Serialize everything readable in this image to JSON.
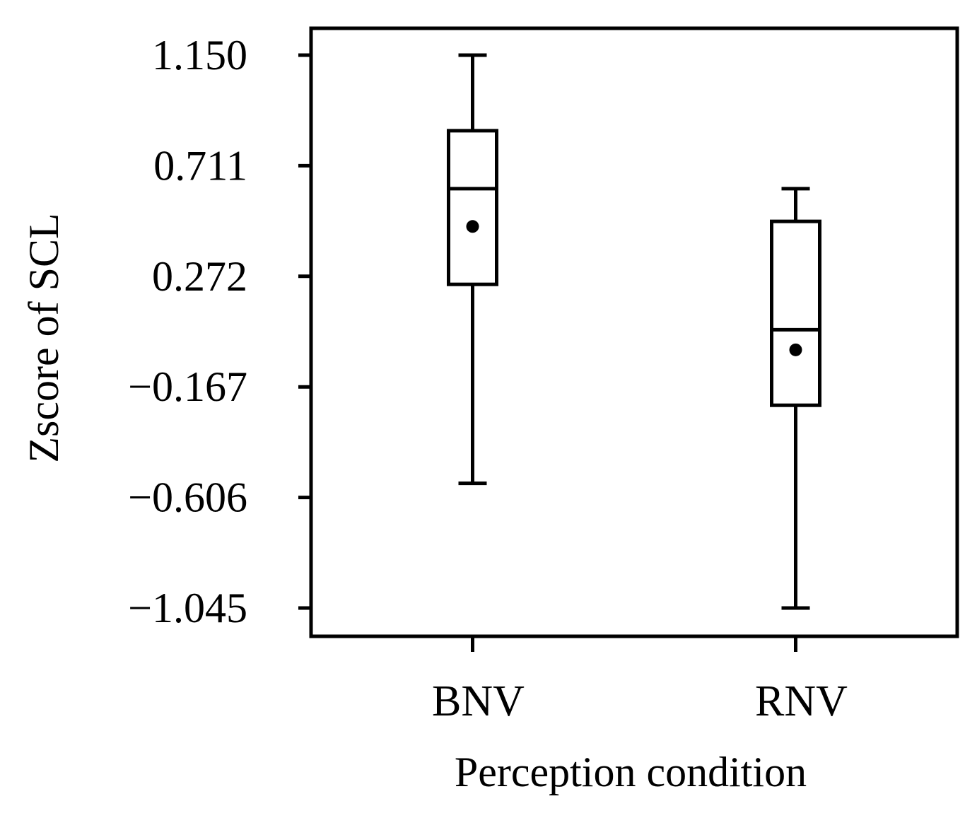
{
  "chart_data": {
    "type": "box",
    "xlabel": "Perception condition",
    "ylabel": "Zscore of SCL",
    "yticks": [
      1.15,
      0.711,
      0.272,
      -0.167,
      -0.606,
      -1.045
    ],
    "ytick_labels": [
      "1.150",
      "0.711",
      "0.272",
      "−0.167",
      "−0.606",
      "−1.045"
    ],
    "ylim": [
      -1.16,
      1.26
    ],
    "categories": [
      "BNV",
      "RNV"
    ],
    "boxes": [
      {
        "name": "BNV",
        "whisker_low": -0.55,
        "q1": 0.24,
        "median": 0.62,
        "q3": 0.85,
        "whisker_high": 1.15,
        "mean": 0.47
      },
      {
        "name": "RNV",
        "whisker_low": -1.045,
        "q1": -0.24,
        "median": 0.06,
        "q3": 0.49,
        "whisker_high": 0.62,
        "mean": -0.02
      }
    ]
  }
}
